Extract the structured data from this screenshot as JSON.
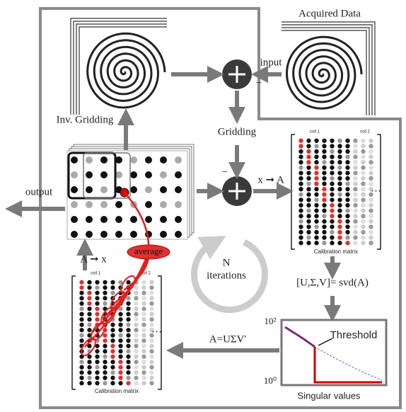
{
  "labels": {
    "acquired_data": "Acquired Data",
    "input": "input",
    "inv_gridding": "Inv. Gridding",
    "gridding": "Gridding",
    "output": "output",
    "x_to_a": "x ➞ A",
    "a_to_x": "A ➞ x",
    "average": "average",
    "n_iterations": [
      "N",
      "iterations"
    ],
    "svd": "[U,Σ,V]= svd(A)",
    "reconstruct": "A=UΣV'",
    "minus": "−"
  },
  "calibration_matrix_top": {
    "coil_labels": [
      "coil 1",
      "coil 2"
    ],
    "caption": "Calibration matrix"
  },
  "calibration_matrix_bottom": {
    "coil_labels": [
      "coil 1",
      "coil 2"
    ],
    "caption": "Calibration matrix"
  },
  "singular_value_plot": {
    "annotation": "Threshold",
    "y_max_label": "10²",
    "y_min_label": "10⁰",
    "x_label": "Singular values"
  }
}
